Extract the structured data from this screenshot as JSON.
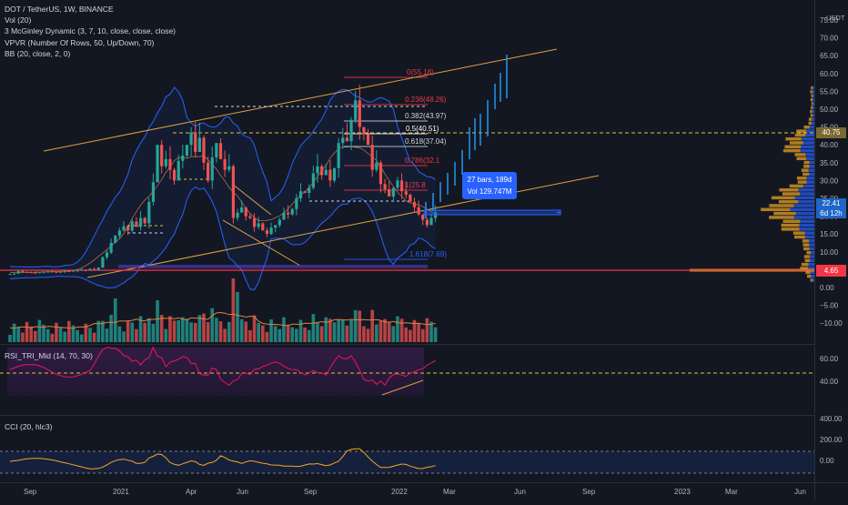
{
  "legend": {
    "symbol": "DOT / TetherUS, 1W, BINANCE",
    "vol": "Vol (20)",
    "mcginley": "3 McGinley Dynamic (3, 7, 10, close, close, close)",
    "vpvr": "VPVR (Number Of Rows, 50, Up/Down, 70)",
    "bb": "BB (20, close, 2, 0)"
  },
  "price_scale": {
    "quote": "USDT",
    "labels": [
      "75.00",
      "70.00",
      "65.00",
      "60.00",
      "55.00",
      "50.00",
      "45.00",
      "40.00",
      "35.00",
      "30.00",
      "25.00",
      "20.00",
      "15.00",
      "10.00",
      "5.00",
      "0.00",
      "−5.00",
      "−10.00"
    ],
    "current_price_tag": "22.41",
    "countdown_tag": "6d 12h",
    "level_tag": "40.75",
    "low_tag": "4.65"
  },
  "fib_labels": [
    {
      "text": "0(55.18)",
      "color": "#f23645"
    },
    {
      "text": "0.236(48.26)",
      "color": "#f23645"
    },
    {
      "text": "0.382(43.97)",
      "color": "#d1d4dc"
    },
    {
      "text": "0.5(40.51)",
      "color": "#ffffff"
    },
    {
      "text": "0.618(37.04)",
      "color": "#d1d4dc"
    },
    {
      "text": "0.786(32.1",
      "color": "#f23645"
    },
    {
      "text": "1(25.8",
      "color": "#f23645"
    },
    {
      "text": "1.618(7.69)",
      "color": "#2962ff"
    }
  ],
  "measure_tooltip": {
    "line1": "27 bars, 189d",
    "line2": "Vol 129.747M"
  },
  "rsi": {
    "title": "RSI_TRI_Mid (14, 70, 30)",
    "scale": [
      "60.00",
      "40.00"
    ]
  },
  "cci": {
    "title": "CCI (20, hlc3)",
    "scale": [
      "400.00",
      "200.00",
      "0.00"
    ]
  },
  "time_axis": [
    "Sep",
    "2021",
    "Apr",
    "Jun",
    "Sep",
    "2022",
    "Mar",
    "Jun",
    "Sep",
    "2023",
    "Mar",
    "Jun"
  ],
  "colors": {
    "background": "#131722",
    "up": "#26a69a",
    "down": "#ef5350",
    "accent_blue": "#2962ff",
    "bollinger": "#2962ff",
    "trendline": "#e0a040",
    "rsi_line": "#f0145a",
    "cci_line": "#f5a623"
  }
}
